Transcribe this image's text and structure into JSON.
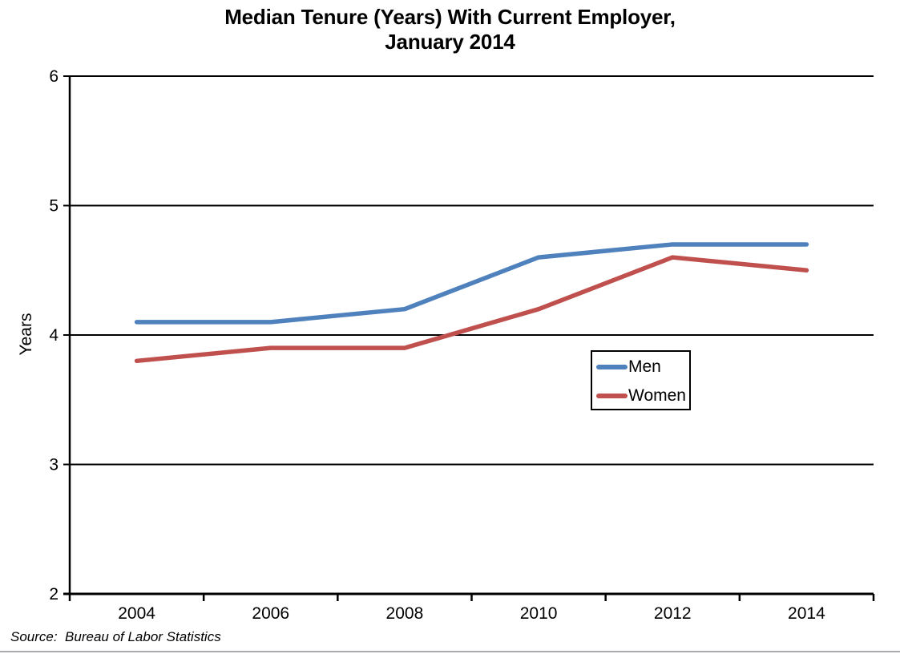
{
  "chart_data": {
    "type": "line",
    "title": "Median Tenure (Years) With Current Employer, January 2014",
    "title_line1": "Median Tenure (Years) With Current Employer,",
    "title_line2": "January 2014",
    "xlabel": "",
    "ylabel": "Years",
    "categories": [
      "2004",
      "2006",
      "2008",
      "2010",
      "2012",
      "2014"
    ],
    "series": [
      {
        "name": "Men",
        "color": "#4F81BD",
        "values": [
          4.1,
          4.1,
          4.2,
          4.6,
          4.7,
          4.7
        ]
      },
      {
        "name": "Women",
        "color": "#C0504D",
        "values": [
          3.8,
          3.9,
          3.9,
          4.2,
          4.6,
          4.5
        ]
      }
    ],
    "ylim": [
      2,
      6
    ],
    "yticks": [
      2,
      3,
      4,
      5,
      6
    ],
    "grid": true,
    "gridline_color": "#000000",
    "axis_color": "#000000",
    "legend_position": "inside-right",
    "line_width": 5.5
  },
  "footer": {
    "source_note": "Source:  Bureau of Labor Statistics"
  }
}
